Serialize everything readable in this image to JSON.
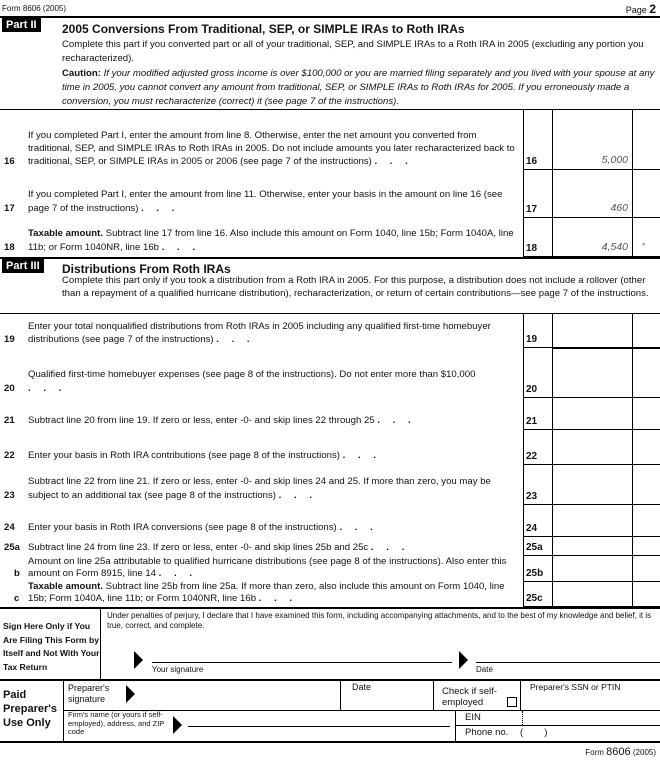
{
  "header": {
    "form": "Form 8606 (2005)",
    "page": "Page",
    "page_num": "2"
  },
  "part2": {
    "label": "Part II",
    "title": "2005 Conversions From Traditional, SEP, or SIMPLE IRAs to Roth IRAs",
    "intro": "Complete this part if you converted part or all of your traditional, SEP, and SIMPLE IRAs to a Roth IRA in 2005 (excluding any portion you recharacterized).",
    "caution_label": "Caution:",
    "caution": "If your modified adjusted gross income is over $100,000 or you are married filing separately and you lived with your spouse at any time in 2005, you cannot convert any amount from traditional, SEP, or SIMPLE IRAs to Roth IRAs for 2005. If you erroneously made a conversion, you must recharacterize (correct) it (see page 7 of the instructions).",
    "lines": [
      {
        "num": "16",
        "text": "If you completed Part I, enter the amount from line 8. Otherwise, enter the net amount you converted from traditional, SEP, and SIMPLE IRAs to Roth IRAs in 2005. Do not include amounts you later recharacterized back to traditional, SEP, or SIMPLE IRAs in 2005 or 2006 (see page 7 of the instructions)",
        "box": "16",
        "value": "5,000"
      },
      {
        "num": "17",
        "text": "If you completed Part I, enter the amount from line 11. Otherwise, enter your basis in the amount on line 16 (see page 7 of the instructions)",
        "box": "17",
        "value": "460"
      },
      {
        "num": "18",
        "bold": "Taxable amount.",
        "text": "Subtract line 17 from line 16. Also include this amount on Form 1040, line 15b; Form 1040A, line 11b; or Form 1040NR, line 16b",
        "box": "18",
        "value": "4,540",
        "mark": "*"
      }
    ]
  },
  "part3": {
    "label": "Part III",
    "title": "Distributions From Roth IRAs",
    "intro": "Complete this part only if you took a distribution from a Roth IRA in 2005. For this purpose, a distribution does not include a rollover (other than a repayment of a qualified hurricane distribution), recharacterization, or return of certain contributions—see page 7 of the instructions.",
    "lines": [
      {
        "num": "19",
        "text": "Enter your total nonqualified distributions from Roth IRAs in 2005 including any qualified first-time homebuyer distributions (see page 7 of the instructions)",
        "box": "19",
        "value": ""
      },
      {
        "num": "20",
        "text": "Qualified first-time homebuyer expenses (see page 8 of the instructions). Do not enter more than $10,000",
        "box": "20",
        "value": ""
      },
      {
        "num": "21",
        "text": "Subtract line 20 from line 19. If zero or less, enter -0- and skip lines 22 through 25",
        "box": "21",
        "value": ""
      },
      {
        "num": "22",
        "text": "Enter your basis in Roth IRA contributions (see page 8 of the instructions)",
        "box": "22",
        "value": ""
      },
      {
        "num": "23",
        "text": "Subtract line 22 from line 21. If zero or less, enter -0- and skip lines 24 and 25. If more than zero, you may be subject to an additional tax (see page 8 of the instructions)",
        "box": "23",
        "value": ""
      },
      {
        "num": "24",
        "text": "Enter your basis in Roth IRA conversions (see page 8 of the instructions)",
        "box": "24",
        "value": ""
      },
      {
        "num": "25a",
        "text": "Subtract line 24 from line 23. If zero or less, enter -0- and skip lines 25b and 25c",
        "box": "25a",
        "value": ""
      },
      {
        "num": "b",
        "text": "Amount on line 25a attributable to qualified hurricane distributions (see page 8 of the instructions). Also enter this amount on Form 8915, line 14",
        "box": "25b",
        "value": ""
      },
      {
        "num": "c",
        "bold": "Taxable amount.",
        "text": "Subtract line 25b from line 25a. If more than zero, also include this amount on Form 1040, line 15b; Form 1040A, line 11b; or Form 1040NR, line 16b",
        "box": "25c",
        "value": ""
      }
    ]
  },
  "sign": {
    "heading": "Sign Here Only if You Are Filing This Form by Itself and Not With Your Tax Return",
    "declaration": "Under penalties of perjury, I declare that I have examined this form, including accompanying attachments, and to the best of my knowledge and belief, it is true, correct, and complete.",
    "signature": "Your signature",
    "date": "Date"
  },
  "preparer": {
    "heading": "Paid Preparer's Use Only",
    "signature": "Preparer's signature",
    "date": "Date",
    "self_employed": "Check if self-employed",
    "ssn": "Preparer's SSN or PTIN",
    "firm": "Firm's name (or yours if self-employed), address, and ZIP code",
    "ein": "EIN",
    "phone": "Phone no.",
    "phone_paren": "(        )"
  },
  "footer": {
    "form": "Form",
    "num": "8606",
    "year": "(2005)"
  }
}
